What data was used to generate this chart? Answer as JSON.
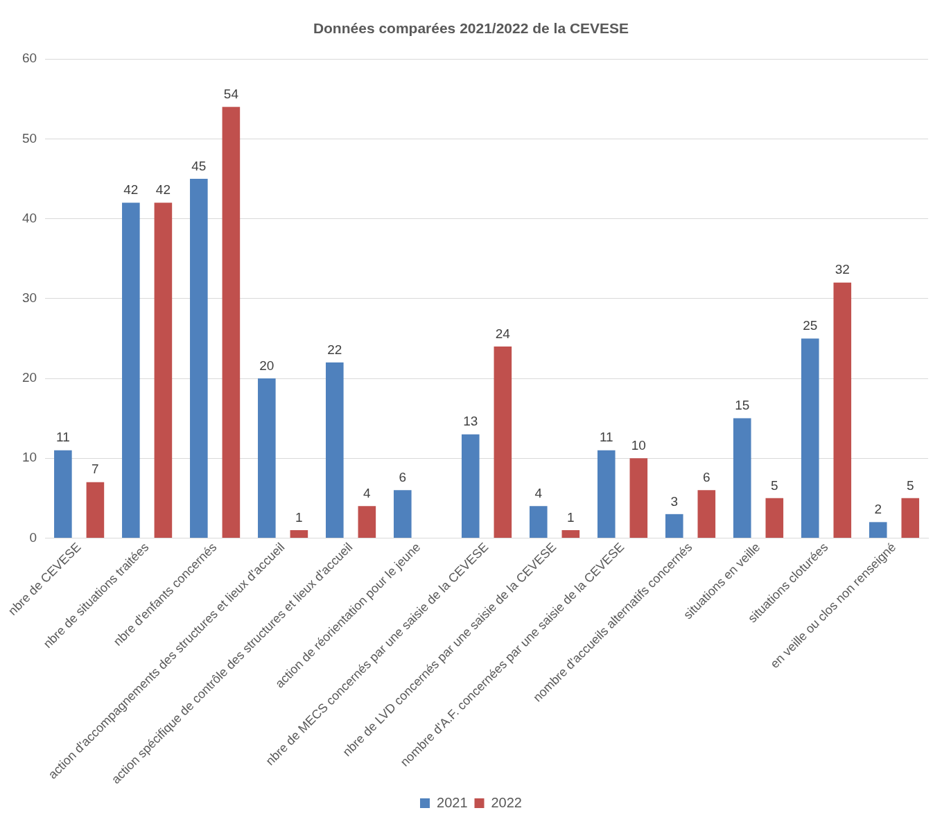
{
  "chart_data": {
    "type": "bar",
    "title": "Données comparées 2021/2022 de la CEVESE",
    "categories": [
      "nbre de CEVESE",
      "nbre de situations traitées",
      "nbre d'enfants concernés",
      "action d'accompagnements des structures et lieux d'accueil",
      "action spécifique de contrôle des structures et lieux d'accueil",
      "action de réorientation pour le jeune",
      "nbre de MECS concernés par une saisie de la CEVESE",
      "nbre de LVD concernés par une saisie de la CEVESE",
      "nombre d'A.F. concernées par une saisie de la CEVESE",
      "nombre d'accueils alternatifs concernés",
      "situations en veille",
      "situations cloturées",
      "en veille ou clos non renseigné"
    ],
    "series": [
      {
        "name": "2021",
        "color": "#4f81bd",
        "values": [
          11,
          42,
          45,
          20,
          22,
          6,
          13,
          4,
          11,
          3,
          15,
          25,
          2
        ]
      },
      {
        "name": "2022",
        "color": "#c0504d",
        "values": [
          7,
          42,
          54,
          1,
          4,
          null,
          24,
          1,
          10,
          6,
          5,
          32,
          5
        ]
      }
    ],
    "ylim": [
      0,
      60
    ],
    "yticks": [
      0,
      10,
      20,
      30,
      40,
      50,
      60
    ],
    "grid": "y",
    "legend": "bottom",
    "data_labels": true
  }
}
